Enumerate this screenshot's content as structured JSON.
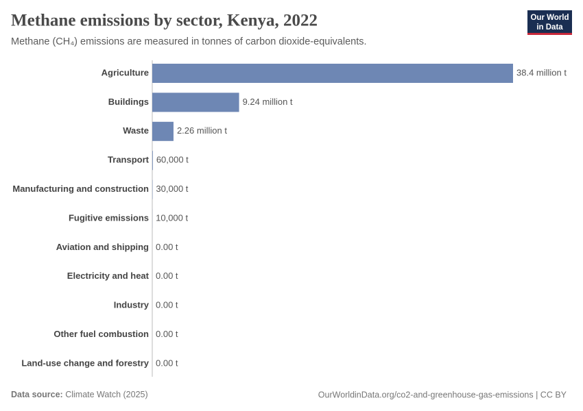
{
  "chart_data": {
    "type": "bar",
    "orientation": "horizontal",
    "title": "Methane emissions by sector, Kenya, 2022",
    "subtitle": "Methane (CH₄) emissions are measured in tonnes of carbon dioxide-equivalents.",
    "categories": [
      "Agriculture",
      "Buildings",
      "Waste",
      "Transport",
      "Manufacturing and construction",
      "Fugitive emissions",
      "Aviation and shipping",
      "Electricity and heat",
      "Industry",
      "Other fuel combustion",
      "Land-use change and forestry"
    ],
    "values": [
      38400000,
      9240000,
      2260000,
      60000,
      30000,
      10000,
      0,
      0,
      0,
      0,
      0
    ],
    "value_labels": [
      "38.4 million t",
      "9.24 million t",
      "2.26 million t",
      "60,000 t",
      "30,000 t",
      "10,000 t",
      "0.00 t",
      "0.00 t",
      "0.00 t",
      "0.00 t",
      "0.00 t"
    ],
    "color": "#6e87b4"
  },
  "logo": {
    "line1": "Our World",
    "line2": "in Data"
  },
  "footer": {
    "source_label": "Data source:",
    "source": "Climate Watch (2025)",
    "url": "OurWorldinData.org/co2-and-greenhouse-gas-emissions | CC BY"
  }
}
